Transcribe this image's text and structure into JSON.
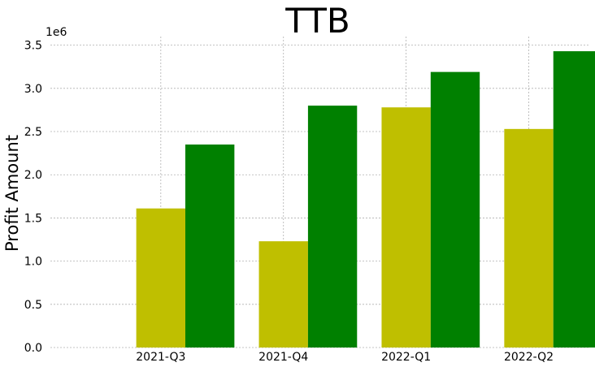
{
  "chart_data": {
    "type": "bar",
    "title": "TTB",
    "ylabel": "Profit Amount",
    "xlabel": "",
    "categories": [
      "2021-Q3",
      "2021-Q4",
      "2022-Q1",
      "2022-Q2"
    ],
    "y_offset_text": "1e6",
    "ylim": [
      0,
      3.6
    ],
    "yticks": [
      "0.0",
      "0.5",
      "1.0",
      "1.5",
      "2.0",
      "2.5",
      "3.0",
      "3.5"
    ],
    "grid": true,
    "series": [
      {
        "color": "#bfbf00",
        "values": [
          1.61,
          1.23,
          2.78,
          2.53
        ]
      },
      {
        "color": "#008000",
        "values": [
          2.35,
          2.8,
          3.19,
          3.43
        ]
      }
    ]
  }
}
